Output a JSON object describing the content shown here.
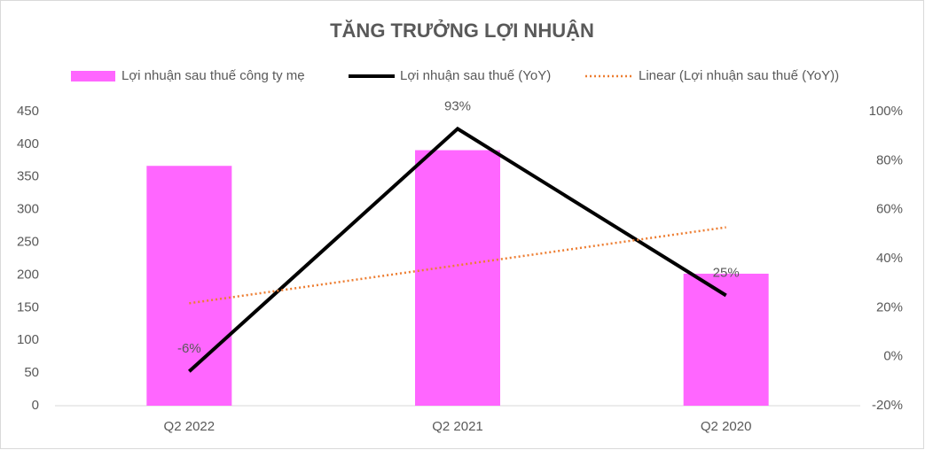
{
  "chart_data": {
    "type": "combo",
    "title": "TĂNG TRƯỞNG LỢI NHUẬN",
    "categories": [
      "Q2 2022",
      "Q2 2021",
      "Q2 2020"
    ],
    "series": [
      {
        "name": "Lợi nhuận sau thuế công ty mẹ",
        "type": "bar",
        "color": "#ff66ff",
        "values": [
          367,
          391,
          202
        ]
      },
      {
        "name": "Lợi nhuận sau thuế (YoY)",
        "type": "line",
        "axis": "y2",
        "color": "#000000",
        "values": [
          -6,
          93,
          25
        ],
        "value_labels": [
          "-6%",
          "93%",
          "25%"
        ]
      },
      {
        "name": "Linear (Lợi nhuận sau thuế (YoY))",
        "type": "line",
        "axis": "y2",
        "dash": "dotted",
        "color": "#ed7d31",
        "values": [
          21.8,
          37.3,
          52.8
        ]
      }
    ],
    "ylim": [
      0,
      450
    ],
    "yticks": [
      0,
      50,
      100,
      150,
      200,
      250,
      300,
      350,
      400,
      450
    ],
    "y2lim": [
      -20,
      100
    ],
    "y2ticks": [
      {
        "value": -20,
        "label": "-20%"
      },
      {
        "value": 0,
        "label": "0%"
      },
      {
        "value": 20,
        "label": "20%"
      },
      {
        "value": 40,
        "label": "40%"
      },
      {
        "value": 60,
        "label": "60%"
      },
      {
        "value": 80,
        "label": "80%"
      },
      {
        "value": 100,
        "label": "100%"
      }
    ],
    "legend": "top"
  }
}
